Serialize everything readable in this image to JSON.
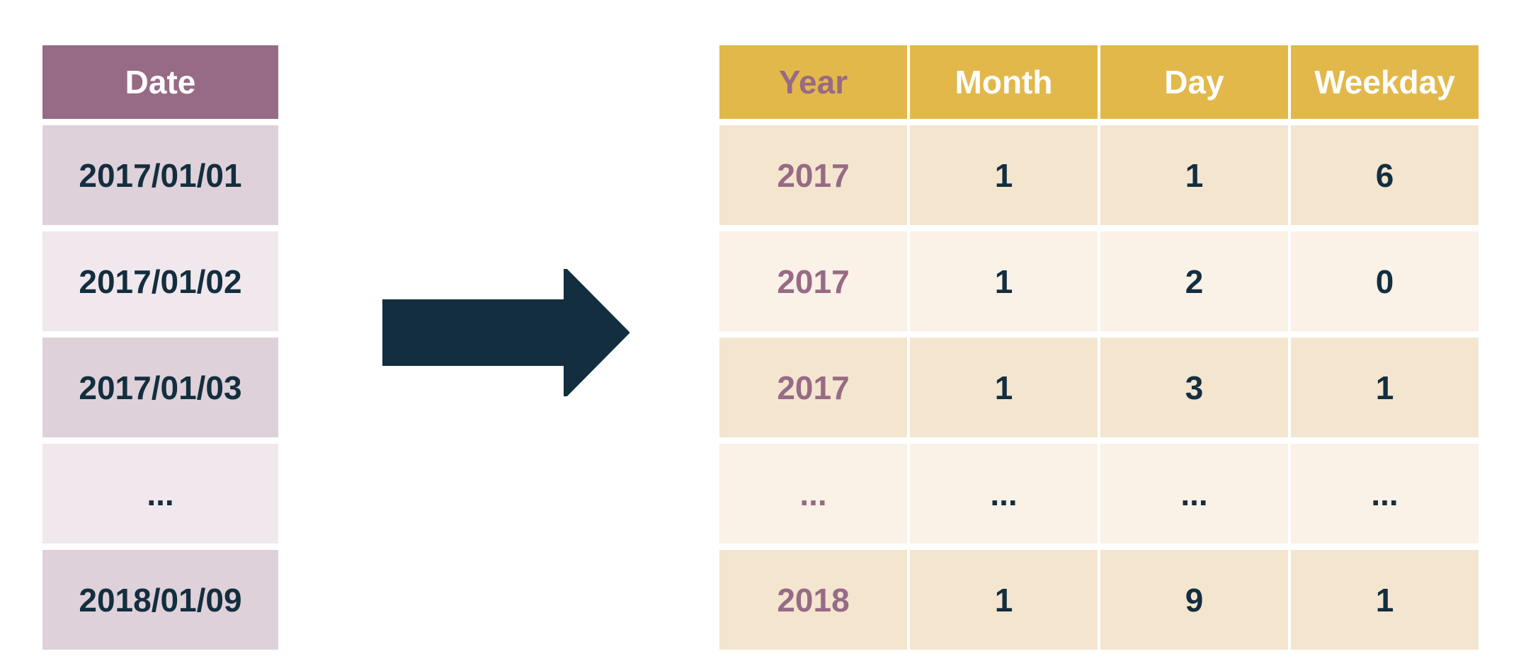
{
  "left_table": {
    "header": "Date",
    "rows": [
      "2017/01/01",
      "2017/01/02",
      "2017/01/03",
      "...",
      "2018/01/09"
    ]
  },
  "right_table": {
    "headers": [
      "Year",
      "Month",
      "Day",
      "Weekday"
    ],
    "rows": [
      [
        "2017",
        "1",
        "1",
        "6"
      ],
      [
        "2017",
        "1",
        "2",
        "0"
      ],
      [
        "2017",
        "1",
        "3",
        "1"
      ],
      [
        "...",
        "...",
        "...",
        "..."
      ],
      [
        "2018",
        "1",
        "9",
        "1"
      ]
    ]
  },
  "colors": {
    "left_header": "#976a85",
    "left_row_odd": "#dfd1d9",
    "left_row_even": "#f0e8ed",
    "right_header": "#e3b84a",
    "right_row_odd": "#f4e5cf",
    "right_row_even": "#faf1e7",
    "text_dark": "#132e3f",
    "year_text": "#976a85",
    "arrow": "#132e3f"
  },
  "arrow_icon": "right-arrow-icon"
}
